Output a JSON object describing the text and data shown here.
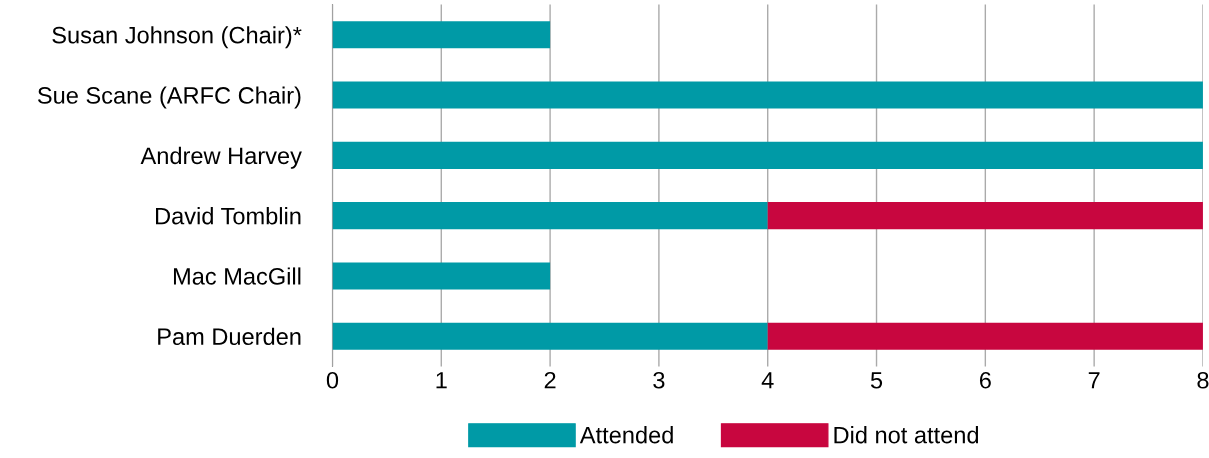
{
  "chart_data": {
    "type": "bar",
    "orientation": "horizontal",
    "stacked": true,
    "categories": [
      "Susan Johnson (Chair)*",
      "Sue Scane (ARFC Chair)",
      "Andrew Harvey",
      "David Tomblin",
      "Mac MacGill",
      "Pam Duerden"
    ],
    "series": [
      {
        "name": "Attended",
        "color": "#009aa6",
        "values": [
          2,
          8,
          8,
          4,
          2,
          4
        ]
      },
      {
        "name": "Did not attend",
        "color": "#c8063f",
        "values": [
          null,
          null,
          null,
          4,
          null,
          4
        ]
      }
    ],
    "xlim": [
      0,
      8
    ],
    "xticks": [
      0,
      1,
      2,
      3,
      4,
      5,
      6,
      7,
      8
    ],
    "grid": "x",
    "legend": "bottom"
  }
}
